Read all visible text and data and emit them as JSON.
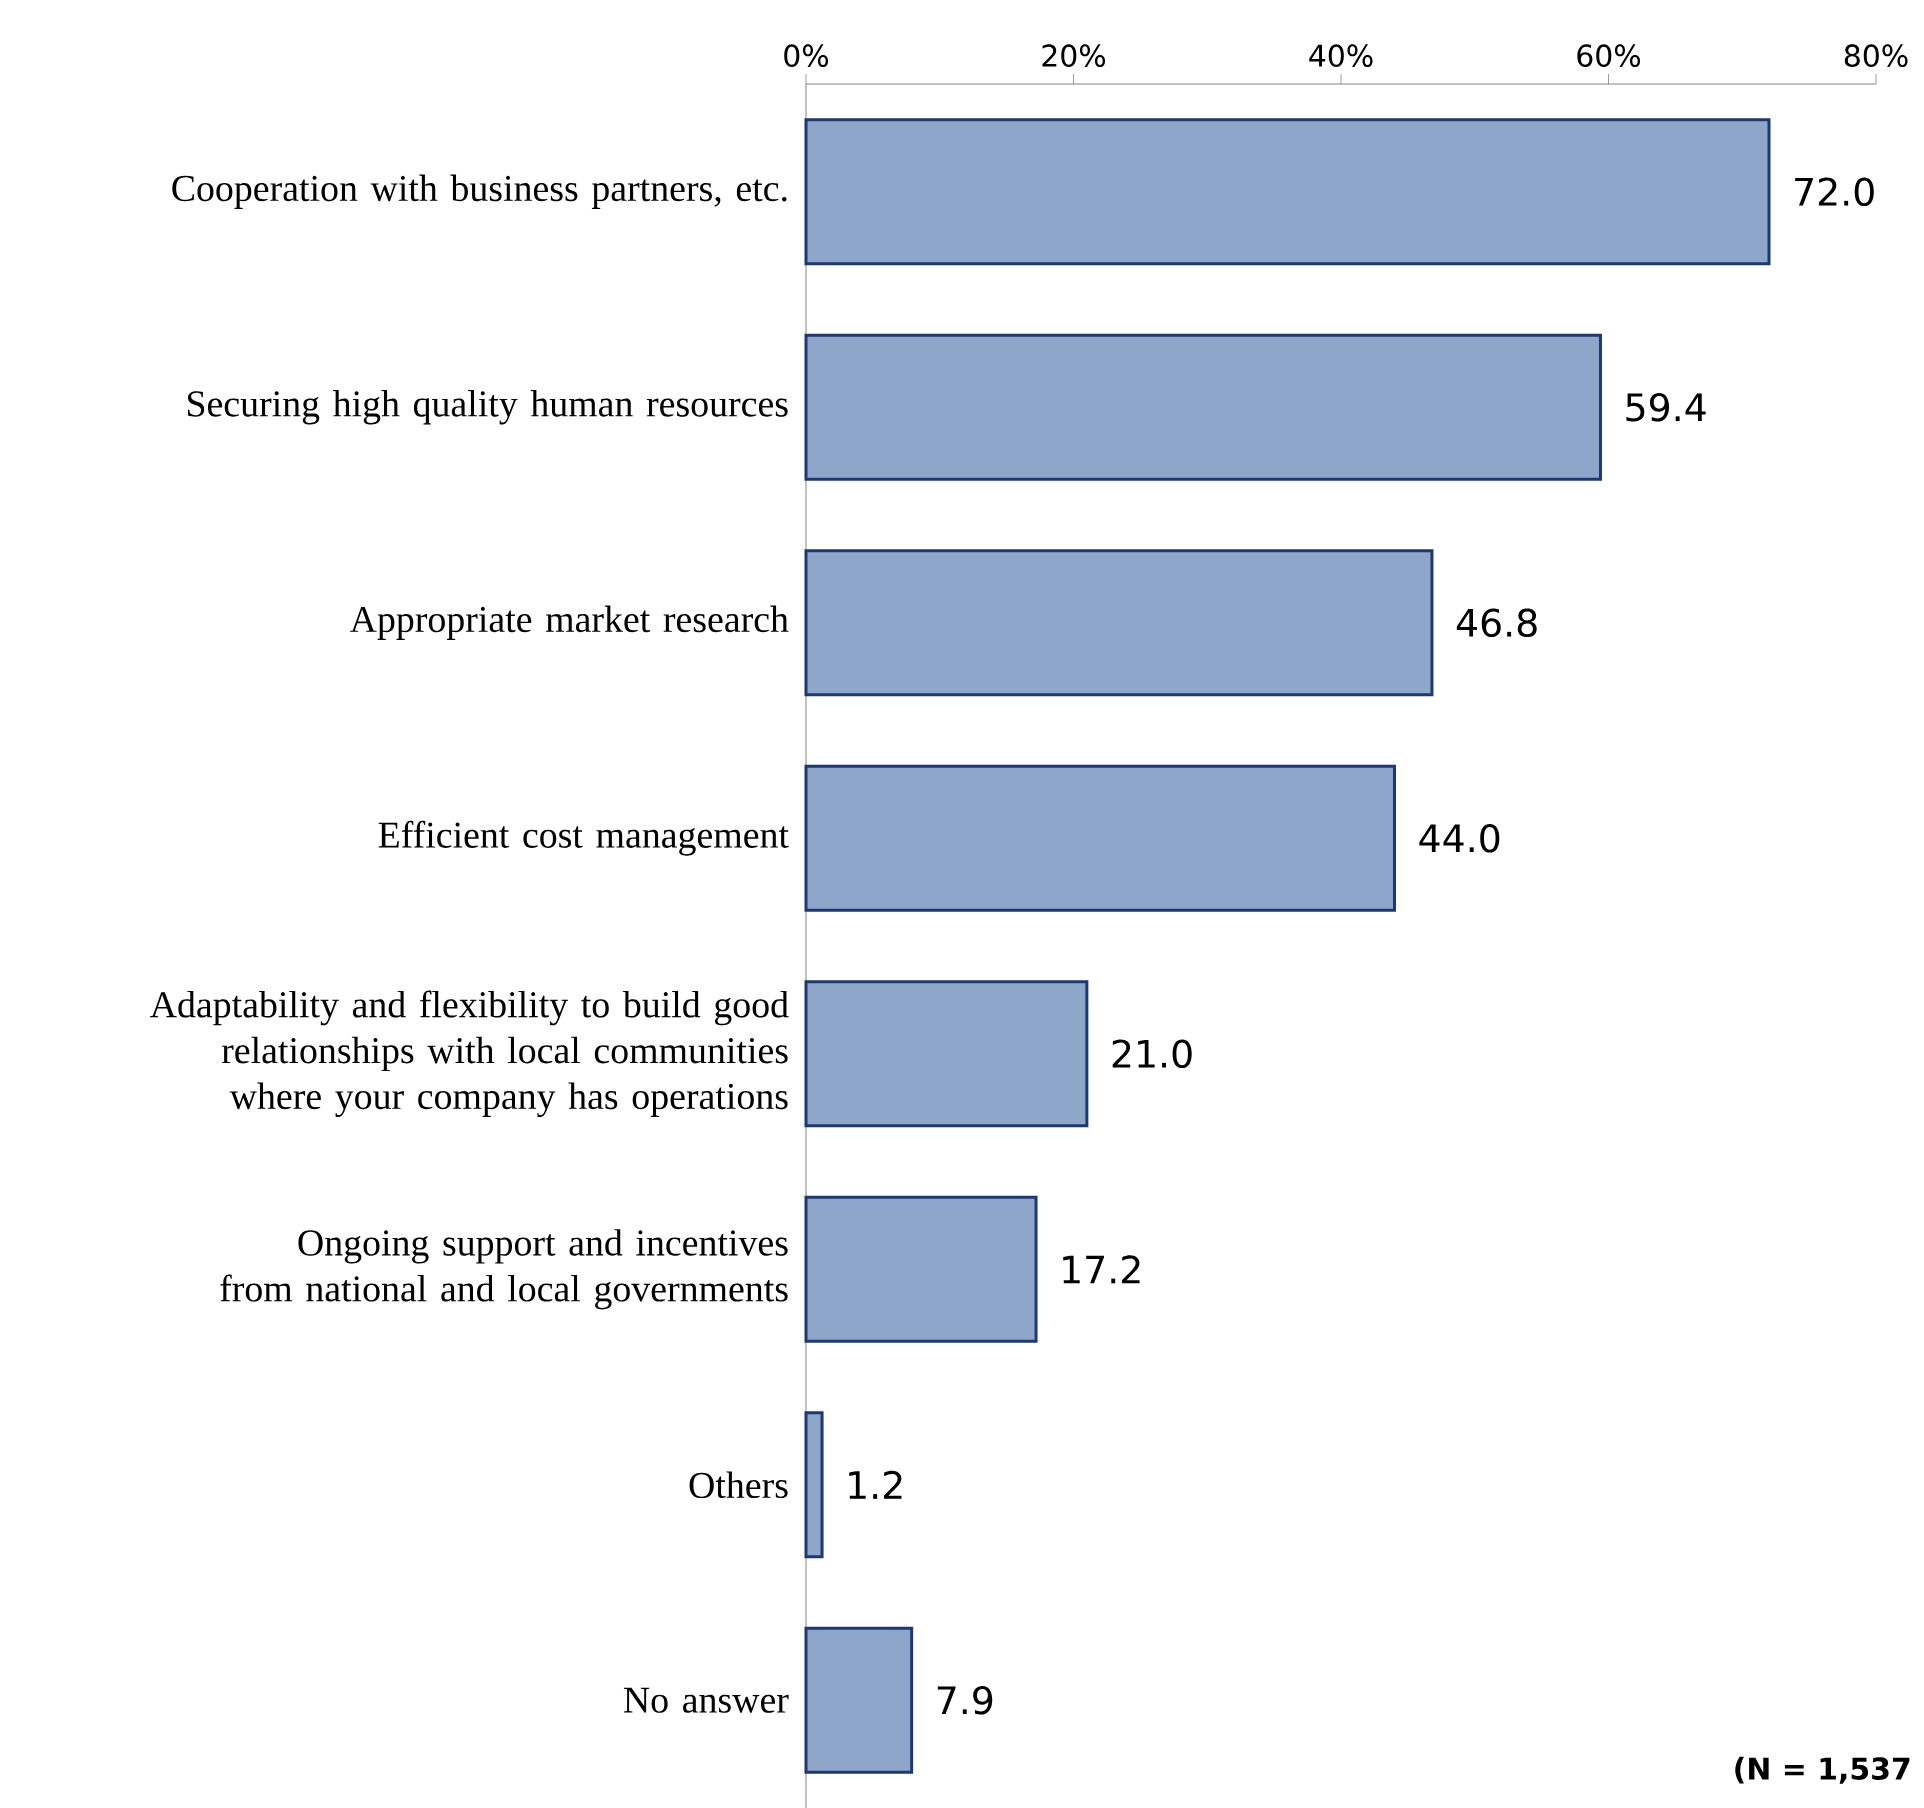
{
  "chart_data": {
    "type": "bar",
    "orientation": "horizontal",
    "categories": [
      "Cooperation with business partners, etc.",
      "Securing high quality human resources",
      "Appropriate market research",
      "Efficient cost management",
      "Adaptability and flexibility to build good relationships with local communities where your company has operations",
      "Ongoing support and incentives from national and local governments",
      "Others",
      "No answer"
    ],
    "values": [
      72.0,
      59.4,
      46.8,
      44.0,
      21.0,
      17.2,
      1.2,
      7.9
    ],
    "color": "#8ea6c9",
    "xlim": [
      0,
      80
    ],
    "xticks": [
      {
        "value": 0,
        "label": "0%"
      },
      {
        "value": 20,
        "label": "20%"
      },
      {
        "value": 40,
        "label": "40%"
      },
      {
        "value": 60,
        "label": "60%"
      },
      {
        "value": 80,
        "label": "80%"
      }
    ],
    "value_labels": [
      "72.0",
      "59.4",
      "46.8",
      "44.0",
      "21.0",
      "17.2",
      "1.2",
      "7.9"
    ],
    "annotations": [
      "(N = 1,537"
    ]
  }
}
